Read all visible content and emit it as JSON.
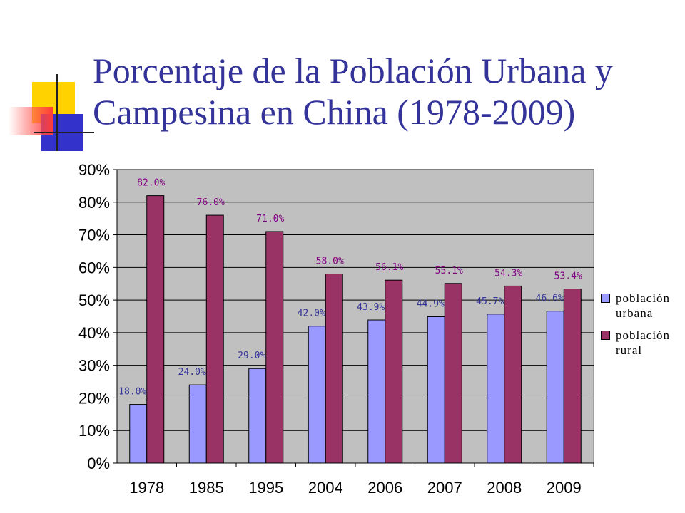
{
  "slide": {
    "title": "Porcentaje de la Población Urbana y Campesina en China (1978-2009)"
  },
  "chart_data": {
    "type": "bar",
    "categories": [
      "1978",
      "1985",
      "1995",
      "2004",
      "2006",
      "2007",
      "2008",
      "2009"
    ],
    "series": [
      {
        "name": "población urbana",
        "values": [
          18.0,
          24.0,
          29.0,
          42.0,
          43.9,
          44.9,
          45.7,
          46.6
        ],
        "labels": [
          "18.0%",
          "24.0%",
          "29.0%",
          "42.0%",
          "43.9%",
          "44.9%",
          "45.7%",
          "46.6%"
        ],
        "color": "#9999ff",
        "label_color": "#333399"
      },
      {
        "name": "población rural",
        "values": [
          82.0,
          76.0,
          71.0,
          58.0,
          56.1,
          55.1,
          54.3,
          53.4
        ],
        "labels": [
          "82.0%",
          "76.0%",
          "71.0%",
          "58.0%",
          "56.1%",
          "55.1%",
          "54.3%",
          "53.4%"
        ],
        "color": "#993366",
        "label_color": "#800080"
      }
    ],
    "ylim": [
      0,
      90
    ],
    "yticks": [
      "0%",
      "10%",
      "20%",
      "30%",
      "40%",
      "50%",
      "60%",
      "70%",
      "80%",
      "90%"
    ],
    "grid": true,
    "plot_background": "#c0c0c0",
    "legend_position": "right"
  }
}
